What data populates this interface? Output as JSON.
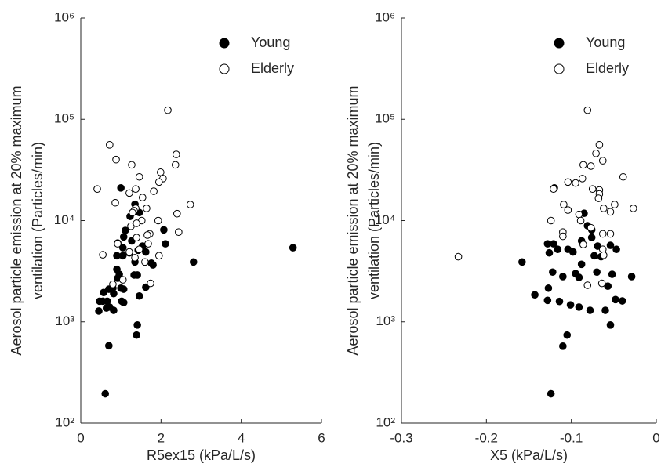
{
  "chart_data": [
    {
      "type": "scatter",
      "xlabel": "R5ex15 (kPa/L/s)",
      "ylabel": [
        "Aerosol particle emission at 20% maximum",
        "ventilation (Particles/min)"
      ],
      "xlim": [
        0,
        6
      ],
      "xticks": [
        0,
        2,
        4,
        6
      ],
      "ylim": [
        100,
        1000000
      ],
      "yscale": "log",
      "yticks": [
        {
          "value": 100,
          "label": "10²"
        },
        {
          "value": 1000,
          "label": "10³"
        },
        {
          "value": 10000,
          "label": "10⁴"
        },
        {
          "value": 100000,
          "label": "10⁵"
        },
        {
          "value": 1000000,
          "label": "10⁶"
        }
      ],
      "legend": "upper right",
      "series": [
        {
          "name": "Young",
          "color": "#000000",
          "filled": true,
          "x": [
            1.0,
            2.07,
            5.29,
            2.81,
            1.46,
            1.23,
            1.35,
            1.11,
            1.07,
            0.92,
            1.27,
            1.05,
            1.54,
            2.11,
            1.43,
            1.21,
            0.9,
            1.05,
            1.62,
            1.35,
            1.76,
            0.9,
            0.96,
            0.92,
            1.41,
            1.33,
            1.8,
            0.8,
            1.0,
            1.07,
            1.62,
            0.7,
            0.82,
            0.57,
            1.46,
            1.02,
            1.07,
            0.55,
            0.66,
            0.47,
            0.72,
            0.64,
            0.45,
            0.82,
            1.41,
            1.39,
            0.7,
            0.61
          ],
          "y": [
            21000,
            8100,
            5400,
            3900,
            12000,
            11000,
            14500,
            8000,
            6900,
            6000,
            6300,
            5400,
            5600,
            5900,
            5100,
            4800,
            4500,
            4500,
            4900,
            3900,
            3800,
            3300,
            2950,
            2700,
            2900,
            2900,
            3650,
            2150,
            2150,
            2100,
            2200,
            2100,
            1900,
            1950,
            1800,
            1600,
            1550,
            1600,
            1600,
            1600,
            1400,
            1370,
            1280,
            1300,
            930,
            740,
            580,
            195
          ]
        },
        {
          "name": "Elderly",
          "color": "#000000",
          "filled": false,
          "x": [
            2.17,
            0.72,
            2.38,
            0.88,
            1.27,
            2.36,
            1.99,
            1.46,
            2.05,
            1.95,
            0.41,
            1.37,
            1.82,
            1.21,
            1.54,
            0.86,
            2.73,
            1.64,
            1.37,
            1.33,
            1.29,
            2.4,
            1.52,
            1.93,
            1.25,
            1.39,
            1.72,
            1.66,
            2.44,
            1.39,
            0.92,
            1.68,
            1.46,
            1.21,
            1.95,
            0.55,
            1.35,
            1.6,
            1.05,
            1.74,
            0.8
          ],
          "y": [
            123000,
            56000,
            45000,
            40000,
            35500,
            35500,
            30000,
            27000,
            26000,
            24000,
            20500,
            20500,
            19500,
            18700,
            16900,
            15000,
            14400,
            13200,
            13200,
            12500,
            12000,
            11700,
            10000,
            10000,
            8800,
            9400,
            7400,
            7200,
            7700,
            6800,
            5900,
            5900,
            5200,
            4900,
            4500,
            4600,
            4300,
            3900,
            2600,
            2400,
            2350
          ]
        }
      ]
    },
    {
      "type": "scatter",
      "xlabel": "X5 (kPa/L/s)",
      "ylabel": [
        "Aerosol particle emission at 20% maximum",
        "ventilation (Particles/min)"
      ],
      "xlim": [
        -0.3,
        0
      ],
      "xticks": [
        -0.3,
        -0.2,
        -0.1,
        0
      ],
      "ylim": [
        100,
        1000000
      ],
      "yscale": "log",
      "yticks": [
        {
          "value": 100,
          "label": "10²"
        },
        {
          "value": 1000,
          "label": "10³"
        },
        {
          "value": 10000,
          "label": "10⁴"
        },
        {
          "value": 100000,
          "label": "10⁵"
        },
        {
          "value": 1000000,
          "label": "10⁶"
        }
      ],
      "legend": "upper right",
      "series": [
        {
          "name": "Young",
          "color": "#000000",
          "filled": true,
          "x": [
            -0.12,
            -0.081,
            -0.076,
            -0.085,
            -0.158,
            -0.128,
            -0.121,
            -0.126,
            -0.116,
            -0.104,
            -0.098,
            -0.088,
            -0.076,
            -0.069,
            -0.073,
            -0.065,
            -0.054,
            -0.047,
            -0.088,
            -0.095,
            -0.091,
            -0.11,
            -0.122,
            -0.07,
            -0.052,
            -0.029,
            -0.143,
            -0.127,
            -0.057,
            -0.101,
            -0.128,
            -0.114,
            -0.048,
            -0.04,
            -0.091,
            -0.078,
            -0.06,
            -0.054,
            -0.105,
            -0.11,
            -0.124
          ],
          "y": [
            21000,
            8900,
            8100,
            11800,
            3900,
            5900,
            5900,
            4800,
            5200,
            5200,
            4900,
            6300,
            6800,
            5600,
            4500,
            4400,
            5700,
            5200,
            3700,
            3000,
            2750,
            2800,
            3100,
            3100,
            2950,
            2800,
            1850,
            2150,
            2250,
            1470,
            1630,
            1590,
            1660,
            1610,
            1400,
            1300,
            1300,
            930,
            740,
            575,
            195
          ]
        },
        {
          "name": "Elderly",
          "color": "#000000",
          "filled": false,
          "x": [
            -0.081,
            -0.067,
            -0.071,
            -0.063,
            -0.086,
            -0.077,
            -0.039,
            -0.087,
            -0.104,
            -0.095,
            -0.121,
            -0.075,
            -0.067,
            -0.067,
            -0.068,
            -0.049,
            -0.109,
            -0.027,
            -0.062,
            -0.104,
            -0.054,
            -0.091,
            -0.124,
            -0.089,
            -0.077,
            -0.11,
            -0.11,
            -0.063,
            -0.054,
            -0.086,
            -0.063,
            -0.062,
            -0.233,
            -0.064,
            -0.081
          ],
          "y": [
            123000,
            56000,
            46000,
            39000,
            35500,
            34500,
            27000,
            26000,
            24000,
            23500,
            20500,
            20500,
            20000,
            18300,
            16600,
            14400,
            14400,
            13200,
            13200,
            12700,
            12200,
            11500,
            10000,
            10000,
            8500,
            7700,
            7000,
            7400,
            7400,
            5800,
            5200,
            4550,
            4400,
            2400,
            2300
          ]
        }
      ]
    }
  ]
}
